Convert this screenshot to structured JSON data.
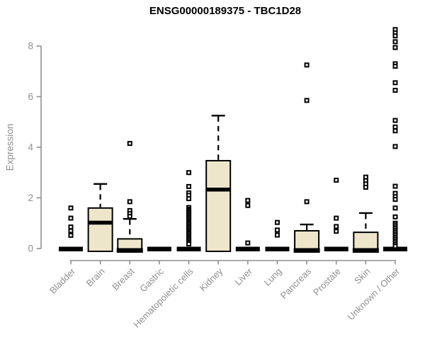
{
  "chart_data": {
    "type": "boxplot",
    "title": "ENSG00000189375 - TBC1D28",
    "ylabel": "Expression",
    "xlabel": "",
    "ylim": [
      0,
      8.7
    ],
    "yticks": [
      0,
      2,
      4,
      6,
      8
    ],
    "grid": false,
    "legend": "none",
    "box_fill": "#EDE6CB",
    "box_stroke": "#000000",
    "axis_color": "#8F8F8F",
    "categories": [
      "Bladder",
      "Brain",
      "Breast",
      "Gastric",
      "Hematopoietic cells",
      "Kidney",
      "Liver",
      "Lung",
      "Pancreas",
      "Prostate",
      "Skin",
      "Unknown / Other"
    ],
    "series": [
      {
        "category": "Bladder",
        "q1": 0,
        "median": 0,
        "q3": 0,
        "whisker_high": 0,
        "outliers": [
          1.6,
          1.2,
          0.85,
          0.7,
          0.52
        ]
      },
      {
        "category": "Brain",
        "q1": 0,
        "median": 1.02,
        "q3": 1.6,
        "whisker_high": 2.55,
        "outliers": []
      },
      {
        "category": "Breast",
        "q1": 0,
        "median": 0,
        "q3": 0.38,
        "whisker_high": 1.17,
        "outliers": [
          4.15,
          1.85,
          1.5,
          1.38,
          1.27
        ]
      },
      {
        "category": "Gastric",
        "q1": 0,
        "median": 0,
        "q3": 0,
        "whisker_high": 0,
        "outliers": []
      },
      {
        "category": "Hematopoietic cells",
        "q1": 0,
        "median": 0,
        "q3": 0,
        "whisker_high": 0,
        "outliers": [
          3.0,
          2.45,
          2.2,
          2.1,
          1.97,
          1.62,
          1.55,
          1.5,
          1.44,
          1.38,
          1.32,
          1.26,
          1.2,
          1.14,
          1.08,
          1.02,
          0.96,
          0.9,
          0.84,
          0.78,
          0.72,
          0.66,
          0.6,
          0.54,
          0.48,
          0.42,
          0.36,
          0.3,
          0.24,
          0.18
        ]
      },
      {
        "category": "Kidney",
        "q1": 0,
        "median": 2.33,
        "q3": 3.47,
        "whisker_high": 5.25,
        "outliers": []
      },
      {
        "category": "Liver",
        "q1": 0,
        "median": 0,
        "q3": 0,
        "whisker_high": 0,
        "outliers": [
          1.9,
          1.7,
          0.22
        ]
      },
      {
        "category": "Lung",
        "q1": 0,
        "median": 0,
        "q3": 0,
        "whisker_high": 0,
        "outliers": [
          1.03,
          0.73,
          0.53
        ]
      },
      {
        "category": "Pancreas",
        "q1": 0,
        "median": 0,
        "q3": 0.7,
        "whisker_high": 0.95,
        "outliers": [
          7.25,
          5.85,
          1.85
        ]
      },
      {
        "category": "Prostate",
        "q1": 0,
        "median": 0,
        "q3": 0,
        "whisker_high": 0,
        "outliers": [
          2.7,
          1.2,
          0.87,
          0.68
        ]
      },
      {
        "category": "Skin",
        "q1": 0,
        "median": 0,
        "q3": 0.64,
        "whisker_high": 1.4,
        "outliers": [
          2.82,
          2.68,
          2.55,
          2.42
        ]
      },
      {
        "category": "Unknown / Other",
        "q1": 0,
        "median": 0,
        "q3": 0,
        "whisker_high": 0,
        "outliers": [
          8.65,
          8.52,
          8.4,
          8.17,
          7.94,
          7.3,
          7.2,
          6.55,
          6.25,
          5.06,
          4.8,
          4.65,
          4.03,
          2.46,
          2.18,
          2.05,
          1.94,
          1.6,
          1.25,
          1.0,
          0.93,
          0.86,
          0.79,
          0.72,
          0.65,
          0.58,
          0.51,
          0.44,
          0.37,
          0.3,
          0.23,
          0.16,
          0.09
        ]
      }
    ]
  }
}
